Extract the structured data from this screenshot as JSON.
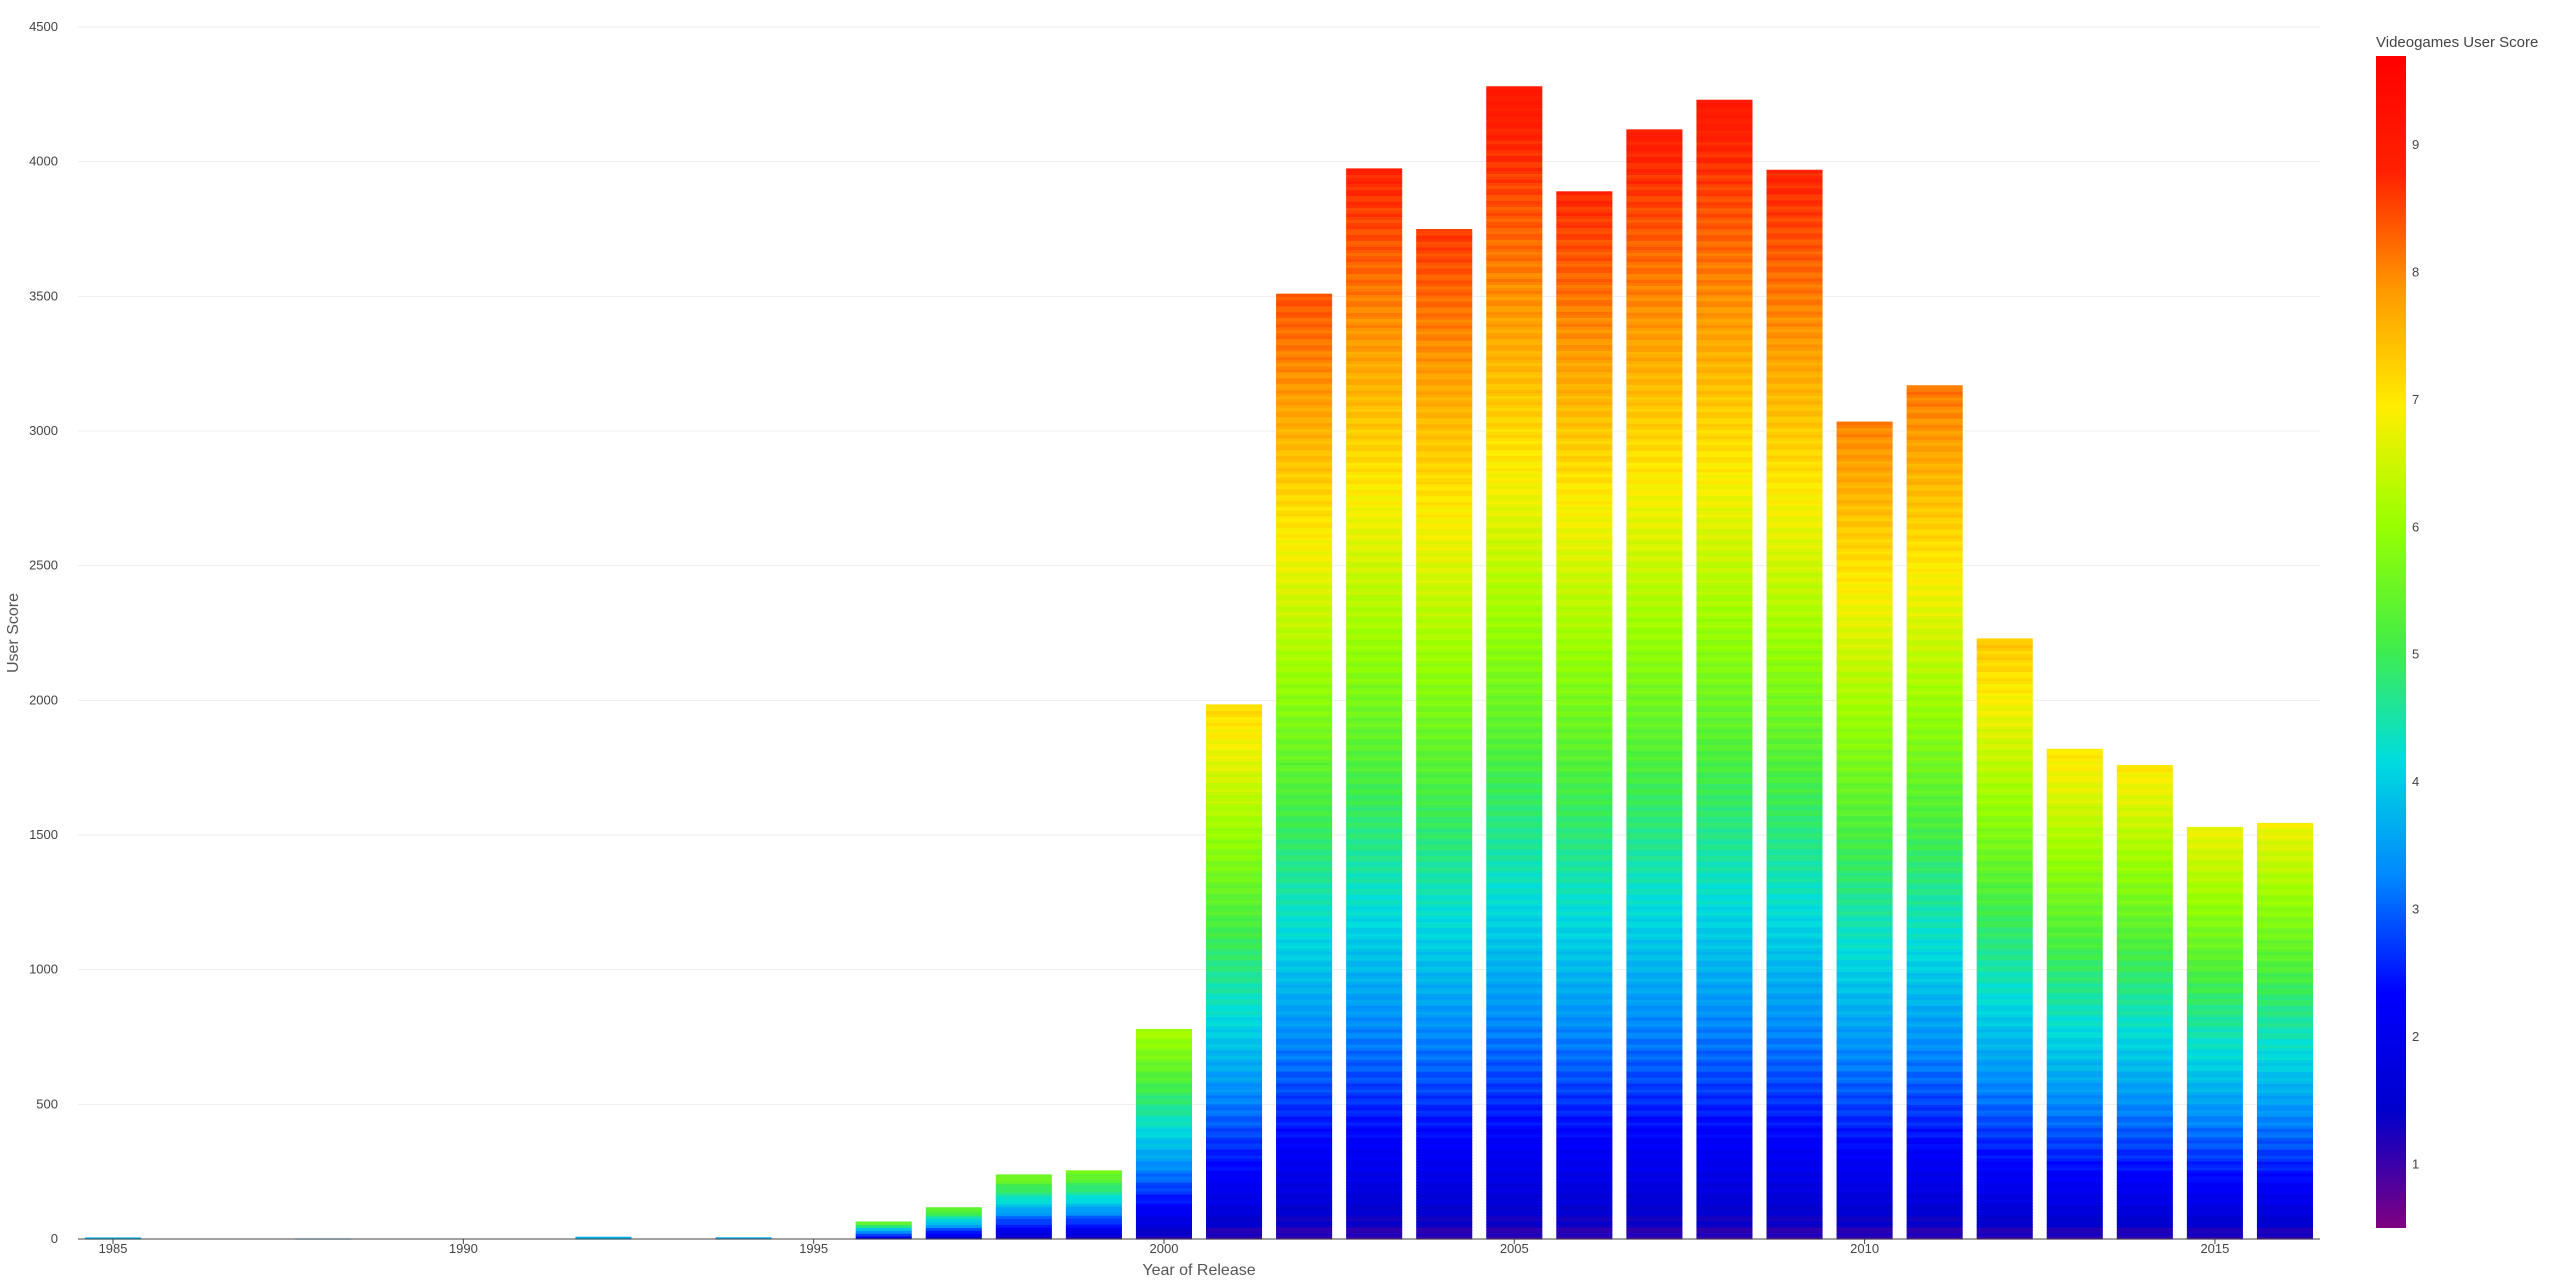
{
  "chart_data": {
    "type": "bar",
    "barmode": "stack",
    "xlabel": "Year of Release",
    "ylabel": "User Score",
    "xlim": [
      1984.5,
      2016.5
    ],
    "ylim": [
      0,
      4500
    ],
    "x_ticks": [
      1985,
      1990,
      1995,
      2000,
      2005,
      2010,
      2015
    ],
    "y_ticks": [
      0,
      500,
      1000,
      1500,
      2000,
      2500,
      3000,
      3500,
      4000,
      4500
    ],
    "grid": true,
    "x": [
      1985,
      1988,
      1992,
      1994,
      1996,
      1997,
      1998,
      1999,
      2000,
      2001,
      2002,
      2003,
      2004,
      2005,
      2006,
      2007,
      2008,
      2009,
      2010,
      2011,
      2012,
      2013,
      2014,
      2015,
      2016
    ],
    "values": [
      5.8,
      2.2,
      8.5,
      6.3,
      65,
      118,
      240,
      255,
      780,
      1985,
      3510,
      3975,
      3750,
      4280,
      3890,
      4120,
      4230,
      3970,
      3035,
      3170,
      2230,
      1820,
      1760,
      1530,
      1545
    ],
    "colorbar": {
      "title": "Videogames User Score",
      "range": [
        0.5,
        9.7
      ],
      "ticks": [
        1,
        2,
        3,
        4,
        5,
        6,
        7,
        8,
        9
      ],
      "colorscale": [
        "#7f0080",
        "#0000cc",
        "#0000ff",
        "#0088ff",
        "#00dddd",
        "#44ee44",
        "#99ff00",
        "#ffee00",
        "#ff9900",
        "#ff2200",
        "#ff0000"
      ]
    }
  }
}
